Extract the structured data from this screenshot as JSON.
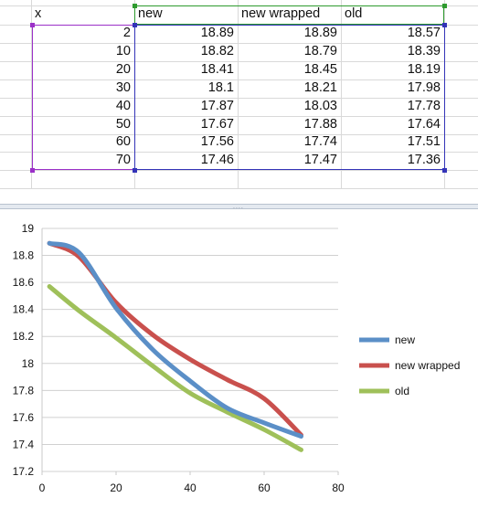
{
  "sheet": {
    "headers": [
      "x",
      "new",
      "new wrapped",
      "old"
    ],
    "rows": [
      [
        "2",
        "18.89",
        "18.89",
        "18.57"
      ],
      [
        "10",
        "18.82",
        "18.79",
        "18.39"
      ],
      [
        "20",
        "18.41",
        "18.45",
        "18.19"
      ],
      [
        "30",
        "18.1",
        "18.21",
        "17.98"
      ],
      [
        "40",
        "17.87",
        "18.03",
        "17.78"
      ],
      [
        "50",
        "17.67",
        "17.88",
        "17.64"
      ],
      [
        "60",
        "17.56",
        "17.74",
        "17.51"
      ],
      [
        "70",
        "17.46",
        "17.47",
        "17.36"
      ]
    ]
  },
  "splitter": {
    "grip": "...."
  },
  "chart_data": {
    "type": "line",
    "x": [
      2,
      10,
      20,
      30,
      40,
      50,
      60,
      70
    ],
    "series": [
      {
        "name": "new",
        "color": "#5b8fc7",
        "values": [
          18.89,
          18.82,
          18.41,
          18.1,
          17.87,
          17.67,
          17.56,
          17.46
        ]
      },
      {
        "name": "new wrapped",
        "color": "#c9504d",
        "values": [
          18.89,
          18.79,
          18.45,
          18.21,
          18.03,
          17.88,
          17.74,
          17.47
        ]
      },
      {
        "name": "old",
        "color": "#9fc05a",
        "values": [
          18.57,
          18.39,
          18.19,
          17.98,
          17.78,
          17.64,
          17.51,
          17.36
        ]
      }
    ],
    "xlim": [
      0,
      80
    ],
    "ylim": [
      17.2,
      19
    ],
    "x_ticks": [
      "0",
      "20",
      "40",
      "60",
      "80"
    ],
    "y_ticks": [
      "17.2",
      "17.4",
      "17.6",
      "17.8",
      "18",
      "18.2",
      "18.4",
      "18.6",
      "18.8",
      "19"
    ],
    "grid": "horizontal",
    "legend": "right",
    "smoothed": true
  }
}
